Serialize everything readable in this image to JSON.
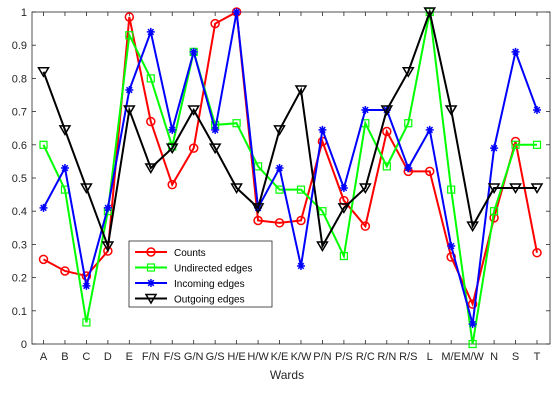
{
  "chart_data": {
    "type": "line",
    "title": "",
    "xlabel": "Wards",
    "ylabel": "",
    "ylim": [
      0,
      1
    ],
    "yticks": [
      "0",
      "0.1",
      "0.2",
      "0.3",
      "0.4",
      "0.5",
      "0.6",
      "0.7",
      "0.8",
      "0.9",
      "1"
    ],
    "grid": false,
    "legend_position": "bottom-left",
    "categories": [
      "A",
      "B",
      "C",
      "D",
      "E",
      "F/N",
      "F/S",
      "G/N",
      "G/S",
      "H/E",
      "H/W",
      "K/E",
      "K/W",
      "P/N",
      "P/S",
      "R/C",
      "R/N",
      "R/S",
      "L",
      "M/E",
      "M/W",
      "N",
      "S",
      "T"
    ],
    "tick_labels": [
      "A",
      "B",
      "C",
      "D",
      "E",
      "F/N",
      "F/S",
      "G/N",
      "G/S",
      "H/E",
      "H/W",
      "K/E",
      "K/W",
      "P/N",
      "P/S",
      "R/C",
      "R/N",
      "R/S",
      "L",
      "M/E",
      "M/W",
      "N",
      "S",
      "T"
    ],
    "series": [
      {
        "name": "Counts",
        "color": "#ff0000",
        "marker": "circle",
        "values": [
          0.255,
          0.22,
          0.205,
          0.28,
          0.985,
          0.67,
          0.48,
          0.59,
          0.965,
          1.0,
          0.372,
          0.365,
          0.372,
          0.61,
          0.432,
          0.355,
          0.64,
          0.52,
          0.52,
          0.262,
          0.12,
          0.38,
          0.61,
          0.275
        ]
      },
      {
        "name": "Undirected edges",
        "color": "#00ff00",
        "marker": "square",
        "values": [
          0.6,
          0.465,
          0.065,
          0.4,
          0.93,
          0.8,
          0.595,
          0.88,
          0.66,
          0.665,
          0.535,
          0.465,
          0.465,
          0.4,
          0.265,
          0.665,
          0.535,
          0.665,
          1.0,
          0.465,
          0.0,
          0.4,
          0.6,
          0.6
        ]
      },
      {
        "name": "Incoming edges",
        "color": "#0000ff",
        "marker": "star",
        "values": [
          0.41,
          0.53,
          0.175,
          0.41,
          0.765,
          0.94,
          0.645,
          0.88,
          0.645,
          1.0,
          0.41,
          0.53,
          0.235,
          0.645,
          0.47,
          0.705,
          0.705,
          0.53,
          0.645,
          0.295,
          0.06,
          0.59,
          0.88,
          0.705
        ]
      },
      {
        "name": "Outgoing edges",
        "color": "#000000",
        "marker": "triangle-down",
        "values": [
          0.82,
          0.645,
          0.47,
          0.295,
          0.705,
          0.53,
          0.59,
          0.705,
          0.59,
          0.47,
          0.41,
          0.645,
          0.765,
          0.295,
          0.41,
          0.47,
          0.705,
          0.82,
          1.0,
          0.705,
          0.355,
          0.47,
          0.47,
          0.47
        ]
      }
    ]
  }
}
